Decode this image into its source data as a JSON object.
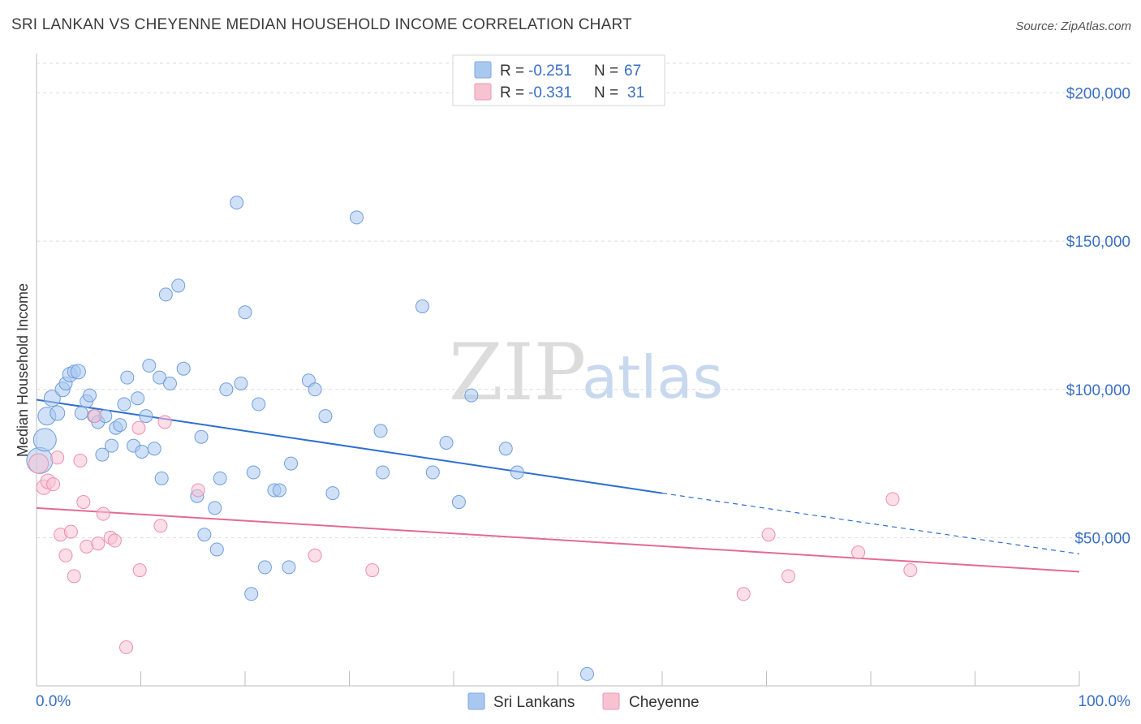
{
  "title": "SRI LANKAN VS CHEYENNE MEDIAN HOUSEHOLD INCOME CORRELATION CHART",
  "source": "Source: ZipAtlas.com",
  "watermark": {
    "zip": "ZIP",
    "atlas": "atlas"
  },
  "legend": {
    "r_label": "R =",
    "n_label": "N =",
    "rows": [
      {
        "r": "-0.251",
        "n": "67",
        "color": "#a9c8f0",
        "edge": "#7ba7e0"
      },
      {
        "r": "-0.331",
        "n": "31",
        "color": "#f7c3d3",
        "edge": "#ee94b1"
      }
    ]
  },
  "bottom_legend": [
    "Sri Lankans",
    "Cheyenne"
  ],
  "colors": {
    "blue_fill": "#a9c8f0",
    "blue_edge": "#6f9edc",
    "blue_line": "#2f6fcf",
    "pink_fill": "#f7c3d3",
    "pink_edge": "#ee8fae",
    "pink_line": "#e46a96",
    "grid": "#dcdcdc",
    "tick_text": "#3a6fc4"
  },
  "chart_data": {
    "type": "scatter",
    "ylabel": "Median Household Income",
    "xlabel": "",
    "xlim": [
      0,
      100
    ],
    "ylim": [
      0,
      210000
    ],
    "x_tick_labels": [
      "0.0%",
      "100.0%"
    ],
    "y_ticks": [
      {
        "value": 50000,
        "label": "$50,000"
      },
      {
        "value": 100000,
        "label": "$100,000"
      },
      {
        "value": 150000,
        "label": "$150,000"
      },
      {
        "value": 200000,
        "label": "$200,000"
      }
    ],
    "series": [
      {
        "name": "Sri Lankans",
        "trend": {
          "x0": 0,
          "y0": 96500,
          "x1": 60,
          "y1": 65000,
          "x_end_dashed": 100,
          "y_end_dashed": 44500
        },
        "points": [
          [
            0.3,
            76000,
            16
          ],
          [
            0.8,
            83000,
            14
          ],
          [
            1.0,
            91000,
            11
          ],
          [
            1.5,
            97000,
            10
          ],
          [
            2.0,
            92000,
            9
          ],
          [
            2.5,
            100000,
            9
          ],
          [
            2.8,
            102000,
            8
          ],
          [
            3.2,
            105000,
            9
          ],
          [
            3.6,
            106000,
            8
          ],
          [
            4.0,
            106000,
            9
          ],
          [
            4.3,
            92000,
            8
          ],
          [
            4.8,
            96000,
            8
          ],
          [
            5.1,
            98000,
            8
          ],
          [
            5.5,
            91000,
            8
          ],
          [
            5.9,
            89000,
            8
          ],
          [
            6.3,
            78000,
            8
          ],
          [
            6.6,
            91000,
            8
          ],
          [
            7.2,
            81000,
            8
          ],
          [
            7.6,
            87000,
            8
          ],
          [
            8.0,
            88000,
            8
          ],
          [
            8.4,
            95000,
            8
          ],
          [
            8.7,
            104000,
            8
          ],
          [
            9.3,
            81000,
            8
          ],
          [
            9.7,
            97000,
            8
          ],
          [
            10.1,
            79000,
            8
          ],
          [
            10.5,
            91000,
            8
          ],
          [
            10.8,
            108000,
            8
          ],
          [
            11.3,
            80000,
            8
          ],
          [
            11.8,
            104000,
            8
          ],
          [
            12.4,
            132000,
            8
          ],
          [
            12.8,
            102000,
            8
          ],
          [
            13.6,
            135000,
            8
          ],
          [
            14.1,
            107000,
            8
          ],
          [
            12.0,
            70000,
            8
          ],
          [
            15.4,
            64000,
            8
          ],
          [
            15.8,
            84000,
            8
          ],
          [
            16.1,
            51000,
            8
          ],
          [
            17.1,
            60000,
            8
          ],
          [
            17.3,
            46000,
            8
          ],
          [
            17.6,
            70000,
            8
          ],
          [
            18.2,
            100000,
            8
          ],
          [
            19.2,
            163000,
            8
          ],
          [
            19.6,
            102000,
            8
          ],
          [
            20.0,
            126000,
            8
          ],
          [
            20.8,
            72000,
            8
          ],
          [
            21.3,
            95000,
            8
          ],
          [
            21.9,
            40000,
            8
          ],
          [
            20.6,
            31000,
            8
          ],
          [
            22.8,
            66000,
            8
          ],
          [
            23.3,
            66000,
            8
          ],
          [
            24.2,
            40000,
            8
          ],
          [
            24.4,
            75000,
            8
          ],
          [
            26.1,
            103000,
            8
          ],
          [
            26.7,
            100000,
            8
          ],
          [
            27.7,
            91000,
            8
          ],
          [
            28.4,
            65000,
            8
          ],
          [
            30.7,
            158000,
            8
          ],
          [
            33.0,
            86000,
            8
          ],
          [
            33.2,
            72000,
            8
          ],
          [
            37.0,
            128000,
            8
          ],
          [
            38.0,
            72000,
            8
          ],
          [
            39.3,
            82000,
            8
          ],
          [
            40.5,
            62000,
            8
          ],
          [
            41.7,
            98000,
            8
          ],
          [
            45.0,
            80000,
            8
          ],
          [
            46.1,
            72000,
            8
          ],
          [
            52.8,
            4000,
            8
          ]
        ]
      },
      {
        "name": "Cheyenne",
        "trend": {
          "x0": 0,
          "y0": 60000,
          "x1": 100,
          "y1": 38500
        },
        "points": [
          [
            0.2,
            75000,
            12
          ],
          [
            0.7,
            67000,
            9
          ],
          [
            1.1,
            69000,
            9
          ],
          [
            1.6,
            68000,
            8
          ],
          [
            2.0,
            77000,
            8
          ],
          [
            2.3,
            51000,
            8
          ],
          [
            2.8,
            44000,
            8
          ],
          [
            3.3,
            52000,
            8
          ],
          [
            3.6,
            37000,
            8
          ],
          [
            4.2,
            76000,
            8
          ],
          [
            4.5,
            62000,
            8
          ],
          [
            4.8,
            47000,
            8
          ],
          [
            5.6,
            91000,
            8
          ],
          [
            5.9,
            48000,
            8
          ],
          [
            6.4,
            58000,
            8
          ],
          [
            7.1,
            50000,
            8
          ],
          [
            7.5,
            49000,
            8
          ],
          [
            8.6,
            13000,
            8
          ],
          [
            9.8,
            87000,
            8
          ],
          [
            9.9,
            39000,
            8
          ],
          [
            11.9,
            54000,
            8
          ],
          [
            12.3,
            89000,
            8
          ],
          [
            15.5,
            66000,
            8
          ],
          [
            26.7,
            44000,
            8
          ],
          [
            32.2,
            39000,
            8
          ],
          [
            67.8,
            31000,
            8
          ],
          [
            70.2,
            51000,
            8
          ],
          [
            72.1,
            37000,
            8
          ],
          [
            78.8,
            45000,
            8
          ],
          [
            82.1,
            63000,
            8
          ],
          [
            83.8,
            39000,
            8
          ]
        ]
      }
    ]
  }
}
